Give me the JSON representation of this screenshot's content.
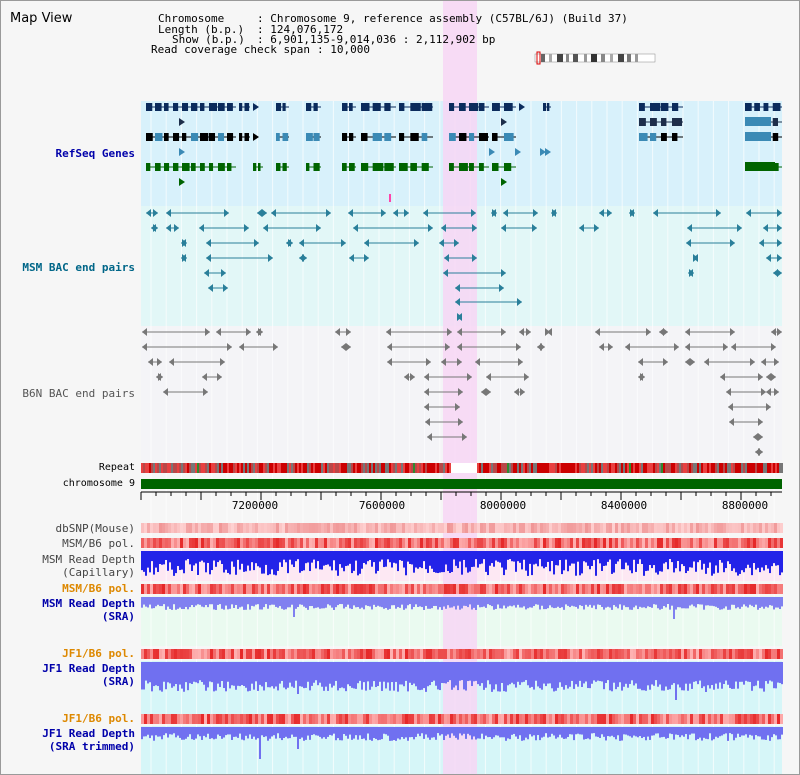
{
  "window": {
    "title": "Map View"
  },
  "info": {
    "chromosome_key": "Chromosome",
    "chromosome_value": ": Chromosome 9, reference assembly (C57BL/6J) (Build 37)",
    "length_key": "Length (b.p.)",
    "length_value": ": 124,076,172",
    "show_key": "Show (b.p.)",
    "show_value": ": 6,901,135-9,014,036 : 2,112,902 bp",
    "coverage_key": "Read coverage check span",
    "coverage_value": ": 10,000"
  },
  "tracks": {
    "refseq": "RefSeq Genes",
    "msm_bac": "MSM BAC end pairs",
    "b6n_bac": "B6N BAC end pairs",
    "repeat": "Repeat",
    "chromosome": "chromosome 9",
    "dbsnp": "dbSNP(Mouse)",
    "msm_b6_pol_1": "MSM/B6 pol.",
    "msm_read_depth_cap_1": "MSM Read Depth",
    "msm_read_depth_cap_2": "(Capillary)",
    "msm_b6_pol_2": "MSM/B6 pol.",
    "msm_read_depth_sra_1": "MSM Read Depth",
    "msm_read_depth_sra_2": "(SRA)",
    "jf1_b6_pol_1": "JF1/B6 pol.",
    "jf1_read_depth_1": "JF1 Read Depth",
    "jf1_read_depth_2": "(SRA)",
    "jf1_b6_pol_2": "JF1/B6 pol.",
    "jf1_read_depth_trim_1": "JF1 Read Depth",
    "jf1_read_depth_trim_2": "(SRA trimmed)"
  },
  "axis": {
    "ticks": [
      "7200000",
      "7600000",
      "8000000",
      "8400000",
      "8800000"
    ]
  },
  "colors": {
    "refseq_label": "#0000aa",
    "msm_bac_label": "#006688",
    "b6n_label": "#555555",
    "orange_label": "#dd8800",
    "blue_label": "#0000aa",
    "highlight": "#f7d6f4",
    "chromosome_bar": "#006400"
  }
}
